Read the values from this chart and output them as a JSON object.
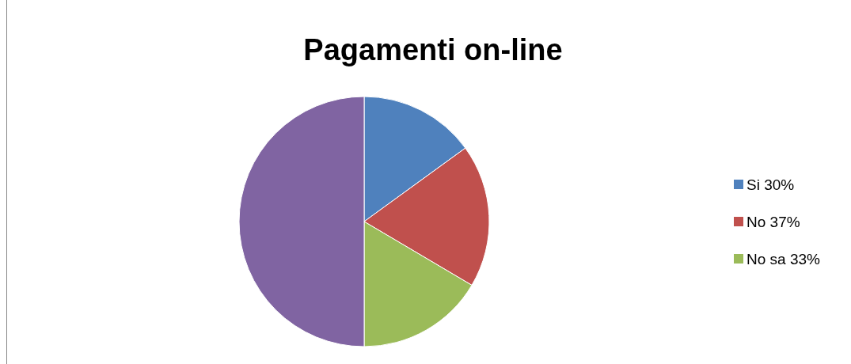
{
  "chart_data": {
    "type": "pie",
    "title": "Pagamenti on-line",
    "categories": [
      "Si 30%",
      "No 37%",
      "No sa 33%",
      null
    ],
    "values": [
      15,
      18.5,
      16.5,
      50
    ],
    "colors": [
      "#4f81bd",
      "#c0504d",
      "#9bbb59",
      "#8064a2"
    ],
    "legend": "right"
  }
}
